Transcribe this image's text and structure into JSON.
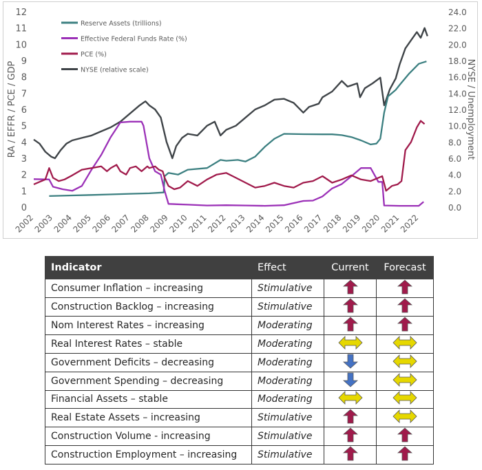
{
  "chart_data": {
    "type": "line",
    "left_axis": {
      "label": "RA / EFFR / PCE / GDP",
      "min": 0,
      "max": 12,
      "ticks": [
        "0",
        "1",
        "2",
        "3",
        "4",
        "5",
        "6",
        "7",
        "8",
        "9",
        "10",
        "11",
        "12"
      ]
    },
    "right_axis": {
      "label": "NYSE / Unemployment",
      "min": 0,
      "max": 24,
      "ticks": [
        "0.0",
        "2.0",
        "4.0",
        "6.0",
        "8.0",
        "10.0",
        "12.0",
        "14.0",
        "16.0",
        "18.0",
        "20.0",
        "22.0",
        "24.0"
      ]
    },
    "x_axis": {
      "min": 2002,
      "max": 2022.6,
      "ticks": [
        "2002",
        "2003",
        "2004",
        "2005",
        "2006",
        "2007",
        "2008",
        "2009",
        "2010",
        "2011",
        "2012",
        "2013",
        "2014",
        "2015",
        "2016",
        "2017",
        "2018",
        "2019",
        "2020",
        "2021",
        "2022"
      ]
    },
    "legend": {
      "position": "top-left"
    },
    "series": [
      {
        "name": "Reserve Assets (trillions)",
        "color": "#3b7f80",
        "axis": "left",
        "points": [
          [
            2002.8,
            0.68
          ],
          [
            2004,
            0.72
          ],
          [
            2005,
            0.75
          ],
          [
            2006,
            0.78
          ],
          [
            2007,
            0.82
          ],
          [
            2008,
            0.85
          ],
          [
            2008.75,
            0.9
          ],
          [
            2008.8,
            1.9
          ],
          [
            2009,
            2.1
          ],
          [
            2009.5,
            2.0
          ],
          [
            2010,
            2.3
          ],
          [
            2011,
            2.4
          ],
          [
            2011.7,
            2.9
          ],
          [
            2012,
            2.85
          ],
          [
            2012.6,
            2.9
          ],
          [
            2013,
            2.8
          ],
          [
            2013.5,
            3.1
          ],
          [
            2014,
            3.7
          ],
          [
            2014.5,
            4.2
          ],
          [
            2015,
            4.5
          ],
          [
            2016,
            4.48
          ],
          [
            2017,
            4.47
          ],
          [
            2017.5,
            4.47
          ],
          [
            2018,
            4.42
          ],
          [
            2018.5,
            4.3
          ],
          [
            2019,
            4.1
          ],
          [
            2019.5,
            3.85
          ],
          [
            2019.8,
            3.9
          ],
          [
            2020.0,
            4.2
          ],
          [
            2020.2,
            5.8
          ],
          [
            2020.4,
            6.8
          ],
          [
            2020.8,
            7.2
          ],
          [
            2021,
            7.5
          ],
          [
            2021.5,
            8.2
          ],
          [
            2022,
            8.8
          ],
          [
            2022.4,
            8.95
          ]
        ]
      },
      {
        "name": "Effective Federal Funds Rate (%)",
        "color": "#9b30b7",
        "axis": "left",
        "points": [
          [
            2002,
            1.72
          ],
          [
            2002.8,
            1.7
          ],
          [
            2003,
            1.25
          ],
          [
            2003.5,
            1.1
          ],
          [
            2004,
            1.0
          ],
          [
            2004.5,
            1.3
          ],
          [
            2005,
            2.3
          ],
          [
            2005.5,
            3.2
          ],
          [
            2006,
            4.3
          ],
          [
            2006.5,
            5.2
          ],
          [
            2007,
            5.25
          ],
          [
            2007.6,
            5.25
          ],
          [
            2007.7,
            5.0
          ],
          [
            2008,
            3.0
          ],
          [
            2008.3,
            2.2
          ],
          [
            2008.6,
            2.0
          ],
          [
            2008.8,
            1.0
          ],
          [
            2009,
            0.2
          ],
          [
            2010,
            0.15
          ],
          [
            2011,
            0.1
          ],
          [
            2012,
            0.12
          ],
          [
            2013,
            0.1
          ],
          [
            2014,
            0.08
          ],
          [
            2015,
            0.12
          ],
          [
            2016,
            0.38
          ],
          [
            2016.5,
            0.4
          ],
          [
            2017,
            0.66
          ],
          [
            2017.5,
            1.15
          ],
          [
            2018,
            1.42
          ],
          [
            2018.5,
            1.9
          ],
          [
            2019,
            2.4
          ],
          [
            2019.5,
            2.4
          ],
          [
            2019.9,
            1.55
          ],
          [
            2020.1,
            1.55
          ],
          [
            2020.2,
            0.1
          ],
          [
            2021,
            0.08
          ],
          [
            2022,
            0.08
          ],
          [
            2022.25,
            0.33
          ]
        ]
      },
      {
        "name": "PCE (%)",
        "color": "#a01a4b",
        "axis": "left",
        "points": [
          [
            2002,
            1.4
          ],
          [
            2002.3,
            1.55
          ],
          [
            2002.6,
            1.7
          ],
          [
            2002.8,
            2.4
          ],
          [
            2003,
            1.8
          ],
          [
            2003.3,
            1.6
          ],
          [
            2003.6,
            1.7
          ],
          [
            2004,
            1.95
          ],
          [
            2004.5,
            2.3
          ],
          [
            2005,
            2.4
          ],
          [
            2005.5,
            2.5
          ],
          [
            2005.8,
            2.2
          ],
          [
            2006,
            2.4
          ],
          [
            2006.3,
            2.6
          ],
          [
            2006.5,
            2.2
          ],
          [
            2006.8,
            2.0
          ],
          [
            2007,
            2.4
          ],
          [
            2007.3,
            2.5
          ],
          [
            2007.6,
            2.2
          ],
          [
            2007.9,
            2.5
          ],
          [
            2008,
            2.4
          ],
          [
            2008.3,
            2.5
          ],
          [
            2008.5,
            2.3
          ],
          [
            2008.7,
            2.2
          ],
          [
            2008.8,
            1.8
          ],
          [
            2009,
            1.3
          ],
          [
            2009.3,
            1.1
          ],
          [
            2009.6,
            1.2
          ],
          [
            2010,
            1.6
          ],
          [
            2010.5,
            1.3
          ],
          [
            2011,
            1.7
          ],
          [
            2011.5,
            2.0
          ],
          [
            2012,
            2.1
          ],
          [
            2012.5,
            1.8
          ],
          [
            2013,
            1.5
          ],
          [
            2013.5,
            1.2
          ],
          [
            2014,
            1.3
          ],
          [
            2014.5,
            1.5
          ],
          [
            2015,
            1.3
          ],
          [
            2015.5,
            1.2
          ],
          [
            2016,
            1.5
          ],
          [
            2016.5,
            1.6
          ],
          [
            2017,
            1.9
          ],
          [
            2017.5,
            1.5
          ],
          [
            2018,
            1.7
          ],
          [
            2018.5,
            1.95
          ],
          [
            2019,
            1.7
          ],
          [
            2019.5,
            1.6
          ],
          [
            2019.9,
            1.8
          ],
          [
            2020.1,
            1.9
          ],
          [
            2020.3,
            1.0
          ],
          [
            2020.6,
            1.3
          ],
          [
            2020.9,
            1.4
          ],
          [
            2021.1,
            1.6
          ],
          [
            2021.3,
            3.5
          ],
          [
            2021.6,
            4.0
          ],
          [
            2021.9,
            4.9
          ],
          [
            2022.1,
            5.3
          ],
          [
            2022.3,
            5.1
          ]
        ]
      },
      {
        "name": "NYSE (relative scale)",
        "color": "#3f4448",
        "axis": "right",
        "points": [
          [
            2002,
            8.3
          ],
          [
            2002.3,
            7.8
          ],
          [
            2002.6,
            6.8
          ],
          [
            2002.9,
            6.2
          ],
          [
            2003.1,
            6.0
          ],
          [
            2003.4,
            7.0
          ],
          [
            2003.7,
            7.8
          ],
          [
            2004,
            8.2
          ],
          [
            2004.5,
            8.5
          ],
          [
            2005,
            8.8
          ],
          [
            2005.5,
            9.3
          ],
          [
            2006,
            9.8
          ],
          [
            2006.5,
            10.5
          ],
          [
            2007,
            11.5
          ],
          [
            2007.5,
            12.5
          ],
          [
            2007.8,
            13.0
          ],
          [
            2008,
            12.5
          ],
          [
            2008.3,
            12.0
          ],
          [
            2008.6,
            11.0
          ],
          [
            2008.9,
            8.0
          ],
          [
            2009.2,
            6.0
          ],
          [
            2009.4,
            7.5
          ],
          [
            2009.7,
            8.5
          ],
          [
            2010,
            9.0
          ],
          [
            2010.5,
            8.8
          ],
          [
            2011,
            10.0
          ],
          [
            2011.4,
            10.5
          ],
          [
            2011.7,
            8.8
          ],
          [
            2012,
            9.5
          ],
          [
            2012.5,
            10.0
          ],
          [
            2013,
            11.0
          ],
          [
            2013.5,
            12.0
          ],
          [
            2014,
            12.5
          ],
          [
            2014.5,
            13.2
          ],
          [
            2015,
            13.3
          ],
          [
            2015.5,
            12.8
          ],
          [
            2016,
            11.6
          ],
          [
            2016.3,
            12.3
          ],
          [
            2016.8,
            12.7
          ],
          [
            2017,
            13.5
          ],
          [
            2017.5,
            14.2
          ],
          [
            2018,
            15.5
          ],
          [
            2018.3,
            14.8
          ],
          [
            2018.8,
            15.2
          ],
          [
            2018.95,
            13.5
          ],
          [
            2019.2,
            14.6
          ],
          [
            2019.6,
            15.2
          ],
          [
            2020,
            15.9
          ],
          [
            2020.2,
            12.5
          ],
          [
            2020.5,
            14.5
          ],
          [
            2020.8,
            15.8
          ],
          [
            2021,
            17.5
          ],
          [
            2021.3,
            19.5
          ],
          [
            2021.6,
            20.5
          ],
          [
            2021.9,
            21.5
          ],
          [
            2022.1,
            20.8
          ],
          [
            2022.3,
            22.0
          ],
          [
            2022.45,
            21.0
          ]
        ]
      }
    ]
  },
  "table": {
    "headers": {
      "indicator": "Indicator",
      "effect": "Effect",
      "current": "Current",
      "forecast": "Forecast"
    },
    "rows": [
      {
        "indicator": "Consumer Inflation – increasing",
        "effect": "Stimulative",
        "current": "up",
        "forecast": "up"
      },
      {
        "indicator": "Construction Backlog – increasing",
        "effect": "Stimulative",
        "current": "up",
        "forecast": "up"
      },
      {
        "indicator": "Nom Interest Rates – increasing",
        "effect": "Moderating",
        "current": "up",
        "forecast": "up"
      },
      {
        "indicator": "Real Interest Rates – stable",
        "effect": "Moderating",
        "current": "both",
        "forecast": "both"
      },
      {
        "indicator": "Government Deficits – decreasing",
        "effect": "Moderating",
        "current": "down",
        "forecast": "both"
      },
      {
        "indicator": "Government Spending – decreasing",
        "effect": "Moderating",
        "current": "down",
        "forecast": "both"
      },
      {
        "indicator": "Financial Assets – stable",
        "effect": "Moderating",
        "current": "both",
        "forecast": "both"
      },
      {
        "indicator": "Real Estate Assets – increasing",
        "effect": "Stimulative",
        "current": "up",
        "forecast": "both"
      },
      {
        "indicator": "Construction Volume - increasing",
        "effect": "Stimulative",
        "current": "up",
        "forecast": "up"
      },
      {
        "indicator": "Construction Employment – increasing",
        "effect": "Stimulative",
        "current": "up",
        "forecast": "up"
      }
    ]
  },
  "colors": {
    "arrow_up": "#a01a4b",
    "arrow_down": "#4472c4",
    "arrow_both": "#e6d800",
    "header_bg": "#404040"
  }
}
